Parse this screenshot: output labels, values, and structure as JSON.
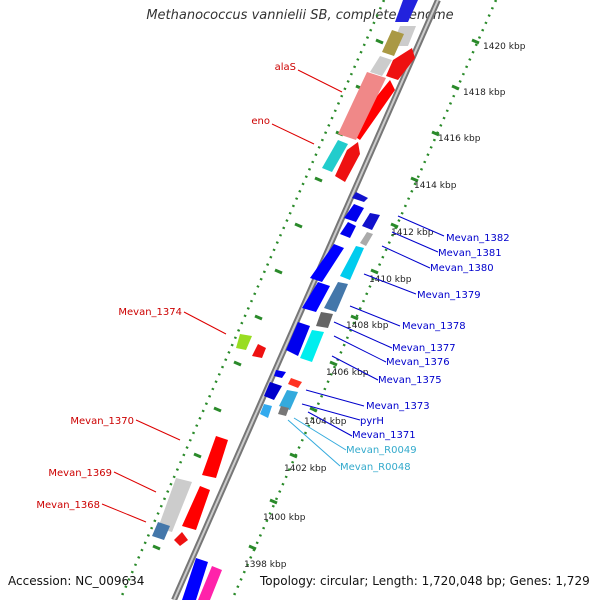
{
  "title": "Methanococcus vannielii SB, complete genome",
  "footer": {
    "accession_label": "Accession:",
    "accession": "NC_009634",
    "topology_label": "Topology:",
    "topology": "circular",
    "length_label": "Length:",
    "length": "1,720,048 bp",
    "genes_label": "Genes:",
    "genes": "1,729"
  },
  "colors": {
    "forward_feature": "#ff0000",
    "reverse_feature": "#0000ff",
    "rna_label": "#33aacc",
    "backbone": "#999999",
    "tick": "#2a8a2a"
  },
  "scale_labels": [
    "1420 kbp",
    "1418 kbp",
    "1416 kbp",
    "1414 kbp",
    "1412 kbp",
    "1410 kbp",
    "1408 kbp",
    "1406 kbp",
    "1404 kbp",
    "1402 kbp",
    "1400 kbp",
    "1398 kbp"
  ],
  "left_labels": [
    "alaS",
    "eno",
    "Mevan_1374",
    "Mevan_1370",
    "Mevan_1369",
    "Mevan_1368"
  ],
  "right_labels": [
    "Mevan_1382",
    "Mevan_1381",
    "Mevan_1380",
    "Mevan_1379",
    "Mevan_1378",
    "Mevan_1377",
    "Mevan_1376",
    "Mevan_1375",
    "Mevan_1373",
    "pyrH",
    "Mevan_1371",
    "Mevan_R0049",
    "Mevan_R0048"
  ]
}
